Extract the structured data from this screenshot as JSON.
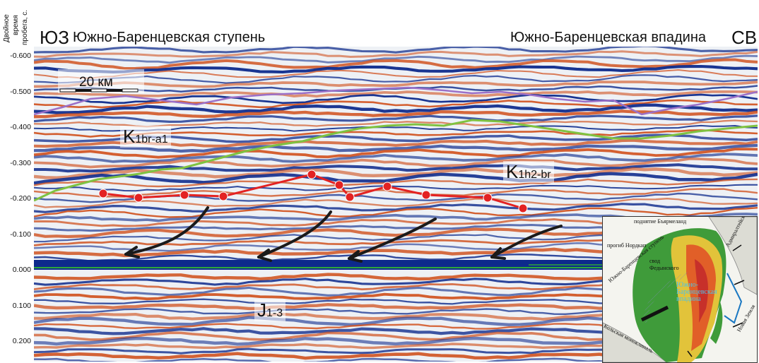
{
  "header": {
    "ylabel_lines": [
      "Двойное",
      "время",
      "пробега, с."
    ],
    "left_dir": "ЮЗ",
    "left_title": "Южно-Баренцевская ступень",
    "right_title": "Южно-Баренцевская впадина",
    "right_dir": "СВ"
  },
  "axis": {
    "ticks": [
      "-0.600",
      "-0.500",
      "-0.400",
      "-0.300",
      "-0.200",
      "-0.100",
      "0.000",
      "0.100",
      "0.200"
    ]
  },
  "scale_bar": {
    "label": "20 км"
  },
  "unit_labels": {
    "k1br_main": "K1br-a1",
    "k1h2_main": "K1h2-br",
    "j_main": "J1-3"
  },
  "inset_map": {
    "labels": [
      "поднятие Бъярмеланд",
      "Адмиралтейское",
      "прогиб Нордкап",
      "свод Федынского",
      "Южно-Баренцевская ступень",
      "Южно-Баренцевская впадина",
      "Новая Земля",
      "Кольская моноклиналь"
    ]
  },
  "colors": {
    "trough": "#0d2a8c",
    "peak": "#d0501d",
    "purple_horizon": "#9b70c8",
    "green_horizon": "#7fc241",
    "red_horizon": "#e32222",
    "arrow": "#1a1a1a",
    "zero_line": "#2fa83a"
  }
}
